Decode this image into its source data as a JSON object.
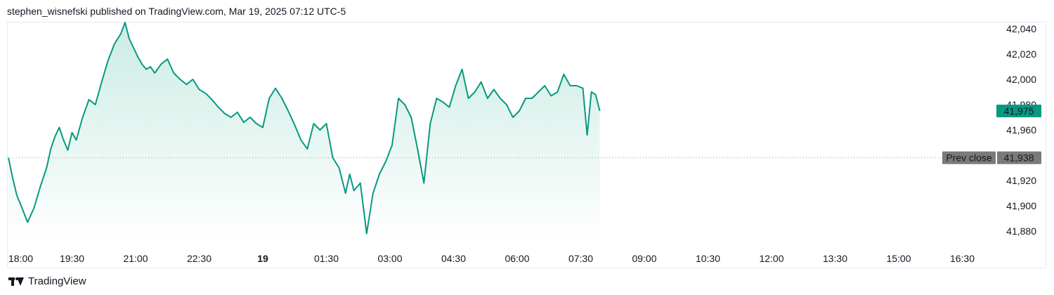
{
  "header": {
    "text": "stephen_wisnefski published on TradingView.com, Mar 19, 2025 07:12 UTC-5"
  },
  "footer": {
    "brand": "TradingView"
  },
  "colors": {
    "line": "#089981",
    "fill_top": "#c8ebe2",
    "prev_close_bg": "#7a7a7a",
    "last_bg": "#089981"
  },
  "chart_data": {
    "type": "area",
    "x_labels": [
      "18:00",
      "19:30",
      "21:00",
      "22:30",
      "19",
      "01:30",
      "03:00",
      "04:30",
      "06:00",
      "07:30",
      "09:00",
      "10:30",
      "12:00",
      "13:30",
      "15:00",
      "16:30"
    ],
    "x_bold_label": "19",
    "y_ticks": [
      "42,040",
      "42,020",
      "42,000",
      "41,980",
      "41,960",
      "41,920",
      "41,900",
      "41,880"
    ],
    "ylim": [
      41870,
      42045
    ],
    "prev_close": {
      "label": "Prev close",
      "value": 41938,
      "value_label": "41,938"
    },
    "last": {
      "value": 41975,
      "value_label": "41,975"
    },
    "series": [
      {
        "hours": [
          0,
          0.1,
          0.2,
          0.3,
          0.45,
          0.6,
          0.75,
          0.9,
          1.0,
          1.1,
          1.2,
          1.3,
          1.4,
          1.5,
          1.6,
          1.75,
          1.9,
          2.05,
          2.2,
          2.35,
          2.5,
          2.65,
          2.75,
          2.85,
          2.95,
          3.05,
          3.15,
          3.25,
          3.35,
          3.45,
          3.6,
          3.75,
          3.9,
          4.05,
          4.2,
          4.35,
          4.5,
          4.65,
          4.8,
          4.95,
          5.1,
          5.25,
          5.4,
          5.55,
          5.7,
          5.85,
          6.0,
          6.15,
          6.3,
          6.45,
          6.6,
          6.75,
          6.9,
          7.05,
          7.2,
          7.35,
          7.5,
          7.65,
          7.8,
          7.95,
          8.05,
          8.15,
          8.3,
          8.45,
          8.6,
          8.75,
          8.9,
          9.05,
          9.2,
          9.35,
          9.5,
          9.65,
          9.8,
          9.95,
          10.1,
          10.25,
          10.4,
          10.55,
          10.7,
          10.85,
          11.0,
          11.15,
          11.3,
          11.45,
          11.6,
          11.75,
          11.9,
          12.05,
          12.2,
          12.35,
          12.5,
          12.65,
          12.8,
          12.95,
          13.1,
          13.25,
          13.4,
          13.55,
          13.65,
          13.75,
          13.85,
          13.95
        ],
        "values": [
          41938,
          41922,
          41908,
          41900,
          41887,
          41898,
          41915,
          41930,
          41945,
          41955,
          41962,
          41952,
          41944,
          41958,
          41952,
          41970,
          41984,
          41980,
          41998,
          42015,
          42028,
          42036,
          42045,
          42032,
          42025,
          42018,
          42012,
          42008,
          42010,
          42005,
          42012,
          42016,
          42005,
          42000,
          41996,
          42000,
          41992,
          41989,
          41984,
          41978,
          41973,
          41970,
          41974,
          41966,
          41970,
          41965,
          41962,
          41985,
          41993,
          41985,
          41975,
          41964,
          41952,
          41945,
          41965,
          41960,
          41965,
          41938,
          41930,
          41910,
          41925,
          41912,
          41918,
          41878,
          41910,
          41925,
          41935,
          41948,
          41985,
          41980,
          41970,
          41945,
          41918,
          41965,
          41985,
          41982,
          41978,
          41995,
          42008,
          41985,
          41990,
          41998,
          41985,
          41992,
          41985,
          41980,
          41970,
          41975,
          41985,
          41985,
          41990,
          41995,
          41987,
          41990,
          42004,
          41995,
          41995,
          41993,
          41956,
          41990,
          41988,
          41975
        ]
      }
    ]
  }
}
